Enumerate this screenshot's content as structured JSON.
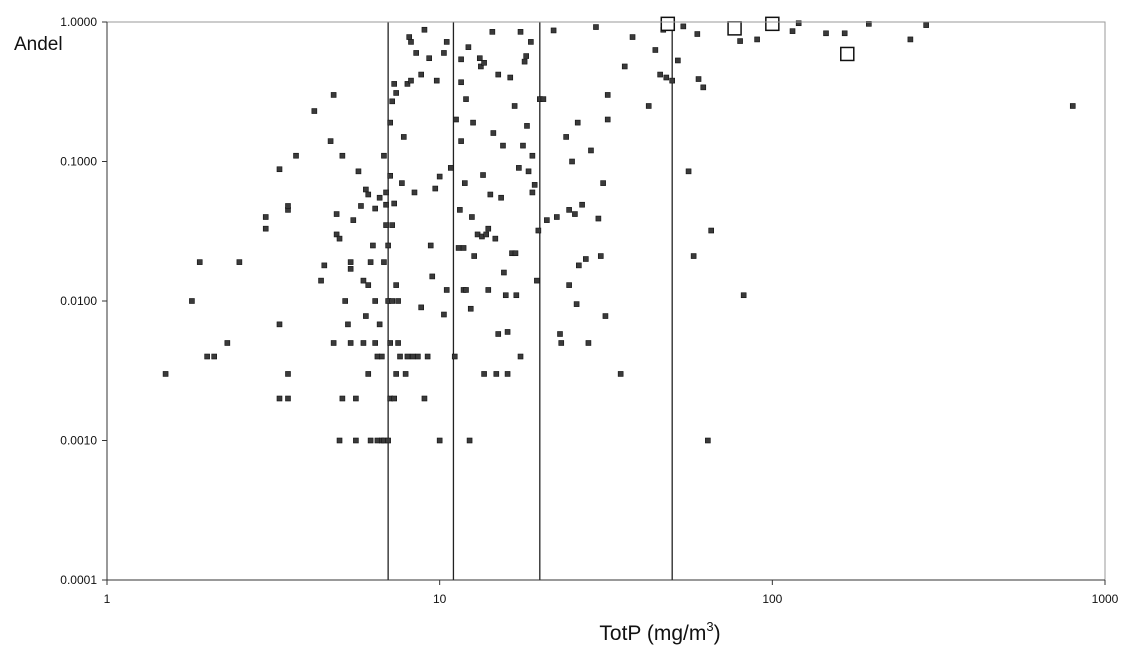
{
  "chart_data": {
    "type": "scatter",
    "title": "",
    "xlabel": "TotP (mg/m",
    "xlabel_sup": "3",
    "xlabel_close": ")",
    "ylabel": "Andel",
    "x_scale": "log",
    "y_scale": "log",
    "xlim": [
      1,
      1000
    ],
    "ylim": [
      0.0001,
      1
    ],
    "x_ticks": [
      1,
      10,
      100,
      1000
    ],
    "x_tick_labels": [
      "1",
      "10",
      "100",
      "1000"
    ],
    "y_ticks": [
      0.0001,
      0.001,
      0.01,
      0.1,
      1
    ],
    "y_tick_labels": [
      "0.0001",
      "0.0010",
      "0.0100",
      "0.1000",
      "1.0000"
    ],
    "grid": false,
    "vertical_reference_lines": [
      7,
      11,
      20,
      50
    ],
    "series": [
      {
        "marker": "small-filled-square",
        "points": [
          [
            1.5,
            0.003
          ],
          [
            1.8,
            0.01
          ],
          [
            1.9,
            0.019
          ],
          [
            2.0,
            0.004
          ],
          [
            2.1,
            0.004
          ],
          [
            2.3,
            0.005
          ],
          [
            2.5,
            0.019
          ],
          [
            3.0,
            0.04
          ],
          [
            3.0,
            0.033
          ],
          [
            3.3,
            0.0068
          ],
          [
            3.3,
            0.002
          ],
          [
            3.5,
            0.002
          ],
          [
            3.3,
            0.088
          ],
          [
            3.5,
            0.045
          ],
          [
            3.5,
            0.048
          ],
          [
            3.5,
            0.003
          ],
          [
            3.7,
            0.11
          ],
          [
            4.2,
            0.23
          ],
          [
            4.4,
            0.014
          ],
          [
            4.5,
            0.018
          ],
          [
            4.7,
            0.14
          ],
          [
            4.8,
            0.3
          ],
          [
            4.8,
            0.005
          ],
          [
            4.9,
            0.042
          ],
          [
            4.9,
            0.03
          ],
          [
            5.0,
            0.028
          ],
          [
            5.1,
            0.11
          ],
          [
            5.0,
            0.001
          ],
          [
            5.1,
            0.002
          ],
          [
            5.2,
            0.01
          ],
          [
            5.3,
            0.0068
          ],
          [
            5.4,
            0.019
          ],
          [
            5.4,
            0.017
          ],
          [
            5.4,
            0.005
          ],
          [
            5.5,
            0.038
          ],
          [
            5.6,
            0.001
          ],
          [
            5.6,
            0.002
          ],
          [
            5.7,
            0.085
          ],
          [
            5.8,
            0.048
          ],
          [
            5.9,
            0.014
          ],
          [
            5.9,
            0.005
          ],
          [
            6.0,
            0.063
          ],
          [
            6.0,
            0.0078
          ],
          [
            6.1,
            0.058
          ],
          [
            6.1,
            0.013
          ],
          [
            6.1,
            0.003
          ],
          [
            6.2,
            0.001
          ],
          [
            6.2,
            0.019
          ],
          [
            6.3,
            0.025
          ],
          [
            6.4,
            0.01
          ],
          [
            6.4,
            0.046
          ],
          [
            6.4,
            0.005
          ],
          [
            6.5,
            0.004
          ],
          [
            6.5,
            0.001
          ],
          [
            6.6,
            0.055
          ],
          [
            6.6,
            0.0068
          ],
          [
            6.7,
            0.001
          ],
          [
            6.7,
            0.004
          ],
          [
            6.8,
            0.019
          ],
          [
            6.8,
            0.11
          ],
          [
            6.8,
            0.001
          ],
          [
            6.9,
            0.06
          ],
          [
            6.9,
            0.049
          ],
          [
            6.9,
            0.035
          ],
          [
            7.0,
            0.025
          ],
          [
            7.0,
            0.001
          ],
          [
            7.0,
            0.01
          ],
          [
            7.1,
            0.19
          ],
          [
            7.1,
            0.079
          ],
          [
            7.1,
            0.005
          ],
          [
            7.1,
            0.002
          ],
          [
            7.2,
            0.01
          ],
          [
            7.2,
            0.035
          ],
          [
            7.2,
            0.27
          ],
          [
            7.3,
            0.002
          ],
          [
            7.3,
            0.36
          ],
          [
            7.3,
            0.05
          ],
          [
            7.4,
            0.013
          ],
          [
            7.4,
            0.003
          ],
          [
            7.4,
            0.31
          ],
          [
            7.5,
            0.01
          ],
          [
            7.5,
            0.005
          ],
          [
            7.6,
            0.004
          ],
          [
            7.7,
            0.07
          ],
          [
            7.8,
            0.15
          ],
          [
            7.9,
            0.003
          ],
          [
            8.0,
            0.36
          ],
          [
            8.0,
            0.004
          ],
          [
            8.1,
            0.78
          ],
          [
            8.2,
            0.38
          ],
          [
            8.2,
            0.72
          ],
          [
            8.3,
            0.004
          ],
          [
            8.4,
            0.06
          ],
          [
            8.5,
            0.6
          ],
          [
            8.6,
            0.004
          ],
          [
            8.8,
            0.42
          ],
          [
            8.8,
            0.009
          ],
          [
            9.0,
            0.002
          ],
          [
            9.0,
            0.88
          ],
          [
            9.2,
            0.004
          ],
          [
            9.3,
            0.55
          ],
          [
            9.4,
            0.025
          ],
          [
            9.5,
            0.015
          ],
          [
            9.7,
            0.064
          ],
          [
            9.8,
            0.38
          ],
          [
            10.0,
            0.078
          ],
          [
            10.0,
            0.001
          ],
          [
            10.3,
            0.008
          ],
          [
            10.3,
            0.6
          ],
          [
            10.5,
            0.72
          ],
          [
            10.5,
            0.012
          ],
          [
            10.8,
            0.09
          ],
          [
            11.1,
            0.004
          ],
          [
            11.2,
            0.2
          ],
          [
            11.4,
            0.024
          ],
          [
            11.5,
            0.045
          ],
          [
            11.6,
            0.37
          ],
          [
            11.6,
            0.54
          ],
          [
            11.6,
            0.14
          ],
          [
            11.8,
            0.024
          ],
          [
            11.8,
            0.012
          ],
          [
            11.9,
            0.07
          ],
          [
            12.0,
            0.28
          ],
          [
            12.0,
            0.012
          ],
          [
            12.2,
            0.66
          ],
          [
            12.3,
            0.001
          ],
          [
            12.4,
            0.0088
          ],
          [
            12.5,
            0.04
          ],
          [
            12.6,
            0.19
          ],
          [
            12.7,
            0.021
          ],
          [
            13.0,
            0.03
          ],
          [
            13.2,
            0.55
          ],
          [
            13.3,
            0.48
          ],
          [
            13.4,
            0.029
          ],
          [
            13.5,
            0.08
          ],
          [
            13.6,
            0.51
          ],
          [
            13.6,
            0.003
          ],
          [
            13.8,
            0.03
          ],
          [
            14.0,
            0.033
          ],
          [
            14.0,
            0.012
          ],
          [
            14.2,
            0.058
          ],
          [
            14.4,
            0.85
          ],
          [
            14.5,
            0.16
          ],
          [
            14.7,
            0.028
          ],
          [
            14.8,
            0.003
          ],
          [
            15.0,
            0.42
          ],
          [
            15.0,
            0.0058
          ],
          [
            15.3,
            0.055
          ],
          [
            15.5,
            0.13
          ],
          [
            15.6,
            0.016
          ],
          [
            15.8,
            0.011
          ],
          [
            16.0,
            0.003
          ],
          [
            16.0,
            0.006
          ],
          [
            16.3,
            0.4
          ],
          [
            16.5,
            0.022
          ],
          [
            16.8,
            0.25
          ],
          [
            16.9,
            0.022
          ],
          [
            17.0,
            0.011
          ],
          [
            17.3,
            0.09
          ],
          [
            17.5,
            0.85
          ],
          [
            17.5,
            0.004
          ],
          [
            17.8,
            0.13
          ],
          [
            18.0,
            0.52
          ],
          [
            18.2,
            0.57
          ],
          [
            18.3,
            0.18
          ],
          [
            18.5,
            0.085
          ],
          [
            18.8,
            0.72
          ],
          [
            19.0,
            0.11
          ],
          [
            19.0,
            0.06
          ],
          [
            19.3,
            0.068
          ],
          [
            19.6,
            0.014
          ],
          [
            19.8,
            0.032
          ],
          [
            20.0,
            0.28
          ],
          [
            20.5,
            0.28
          ],
          [
            21.0,
            0.038
          ],
          [
            22.0,
            0.87
          ],
          [
            22.5,
            0.04
          ],
          [
            23.0,
            0.0058
          ],
          [
            23.2,
            0.005
          ],
          [
            24.0,
            0.15
          ],
          [
            24.5,
            0.045
          ],
          [
            24.5,
            0.013
          ],
          [
            25.0,
            0.1
          ],
          [
            25.5,
            0.042
          ],
          [
            25.8,
            0.0095
          ],
          [
            26.0,
            0.19
          ],
          [
            26.2,
            0.018
          ],
          [
            26.8,
            0.049
          ],
          [
            27.5,
            0.02
          ],
          [
            28.0,
            0.005
          ],
          [
            28.5,
            0.12
          ],
          [
            29.5,
            0.92
          ],
          [
            30.0,
            0.039
          ],
          [
            30.5,
            0.021
          ],
          [
            31.0,
            0.07
          ],
          [
            31.5,
            0.0078
          ],
          [
            32.0,
            0.3
          ],
          [
            32.0,
            0.2
          ],
          [
            35.0,
            0.003
          ],
          [
            36.0,
            0.48
          ],
          [
            38.0,
            0.78
          ],
          [
            42.5,
            0.25
          ],
          [
            44.5,
            0.63
          ],
          [
            46.0,
            0.42
          ],
          [
            47.0,
            0.88
          ],
          [
            48.0,
            0.4
          ],
          [
            50.0,
            0.38
          ],
          [
            52.0,
            0.53
          ],
          [
            54.0,
            0.93
          ],
          [
            56.0,
            0.085
          ],
          [
            58.0,
            0.021
          ],
          [
            59.5,
            0.82
          ],
          [
            60.0,
            0.39
          ],
          [
            62.0,
            0.34
          ],
          [
            64.0,
            0.001
          ],
          [
            65.5,
            0.032
          ],
          [
            80.0,
            0.73
          ],
          [
            82.0,
            0.011
          ],
          [
            90.0,
            0.75
          ],
          [
            115.0,
            0.86
          ],
          [
            120.0,
            0.98
          ],
          [
            145.0,
            0.83
          ],
          [
            165.0,
            0.83
          ],
          [
            195.0,
            0.97
          ],
          [
            260.0,
            0.75
          ],
          [
            290.0,
            0.95
          ],
          [
            800.0,
            0.25
          ]
        ]
      },
      {
        "marker": "large-open-square",
        "points": [
          [
            48.5,
            0.97
          ],
          [
            77.0,
            0.9
          ],
          [
            100.0,
            0.97
          ],
          [
            168.0,
            0.59
          ]
        ]
      }
    ]
  }
}
